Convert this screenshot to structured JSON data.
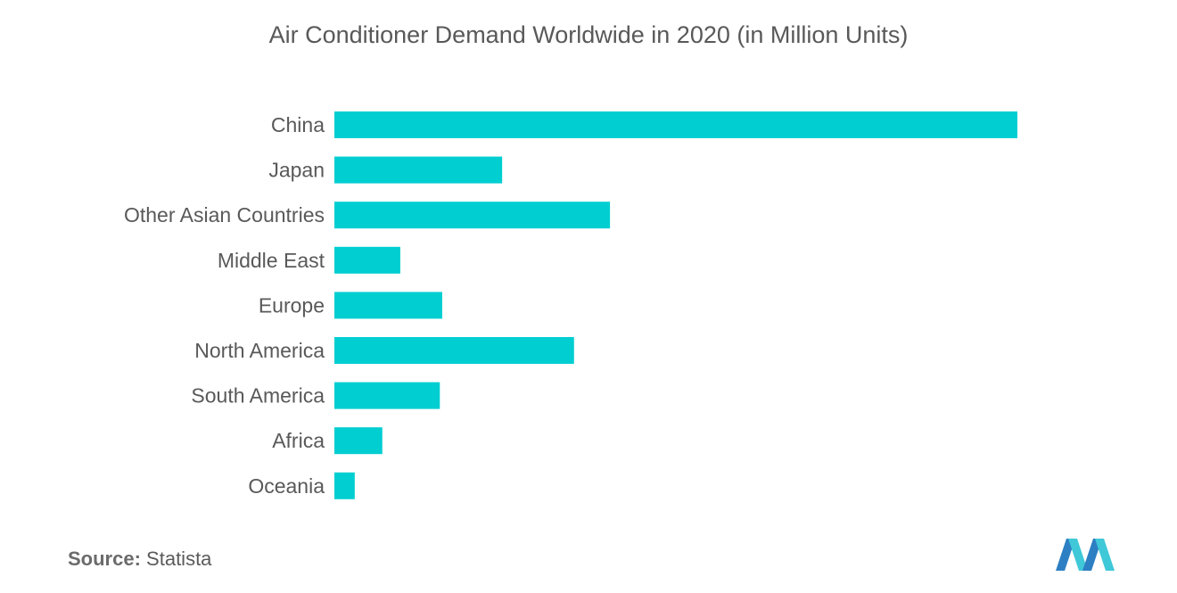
{
  "chart_data": {
    "type": "bar",
    "orientation": "horizontal",
    "title": "Air Conditioner Demand Worldwide in 2020 (in Million Units)",
    "categories": [
      "China",
      "Japan",
      "Other Asian Countries",
      "Middle East",
      "Europe",
      "North America",
      "South America",
      "Africa",
      "Oceania"
    ],
    "values": [
      57,
      14,
      23,
      5.5,
      9,
      20,
      8.8,
      4,
      1.7
    ],
    "xlabel": "",
    "ylabel": "",
    "xlim": [
      0,
      57
    ],
    "grid": false,
    "bar_color": "#00CED1"
  },
  "source": {
    "label": "Source:",
    "value": "Statista"
  },
  "logo": {
    "icon": "mordor-logo-icon",
    "colors": [
      "#2D7FC3",
      "#3FC8D8"
    ]
  }
}
